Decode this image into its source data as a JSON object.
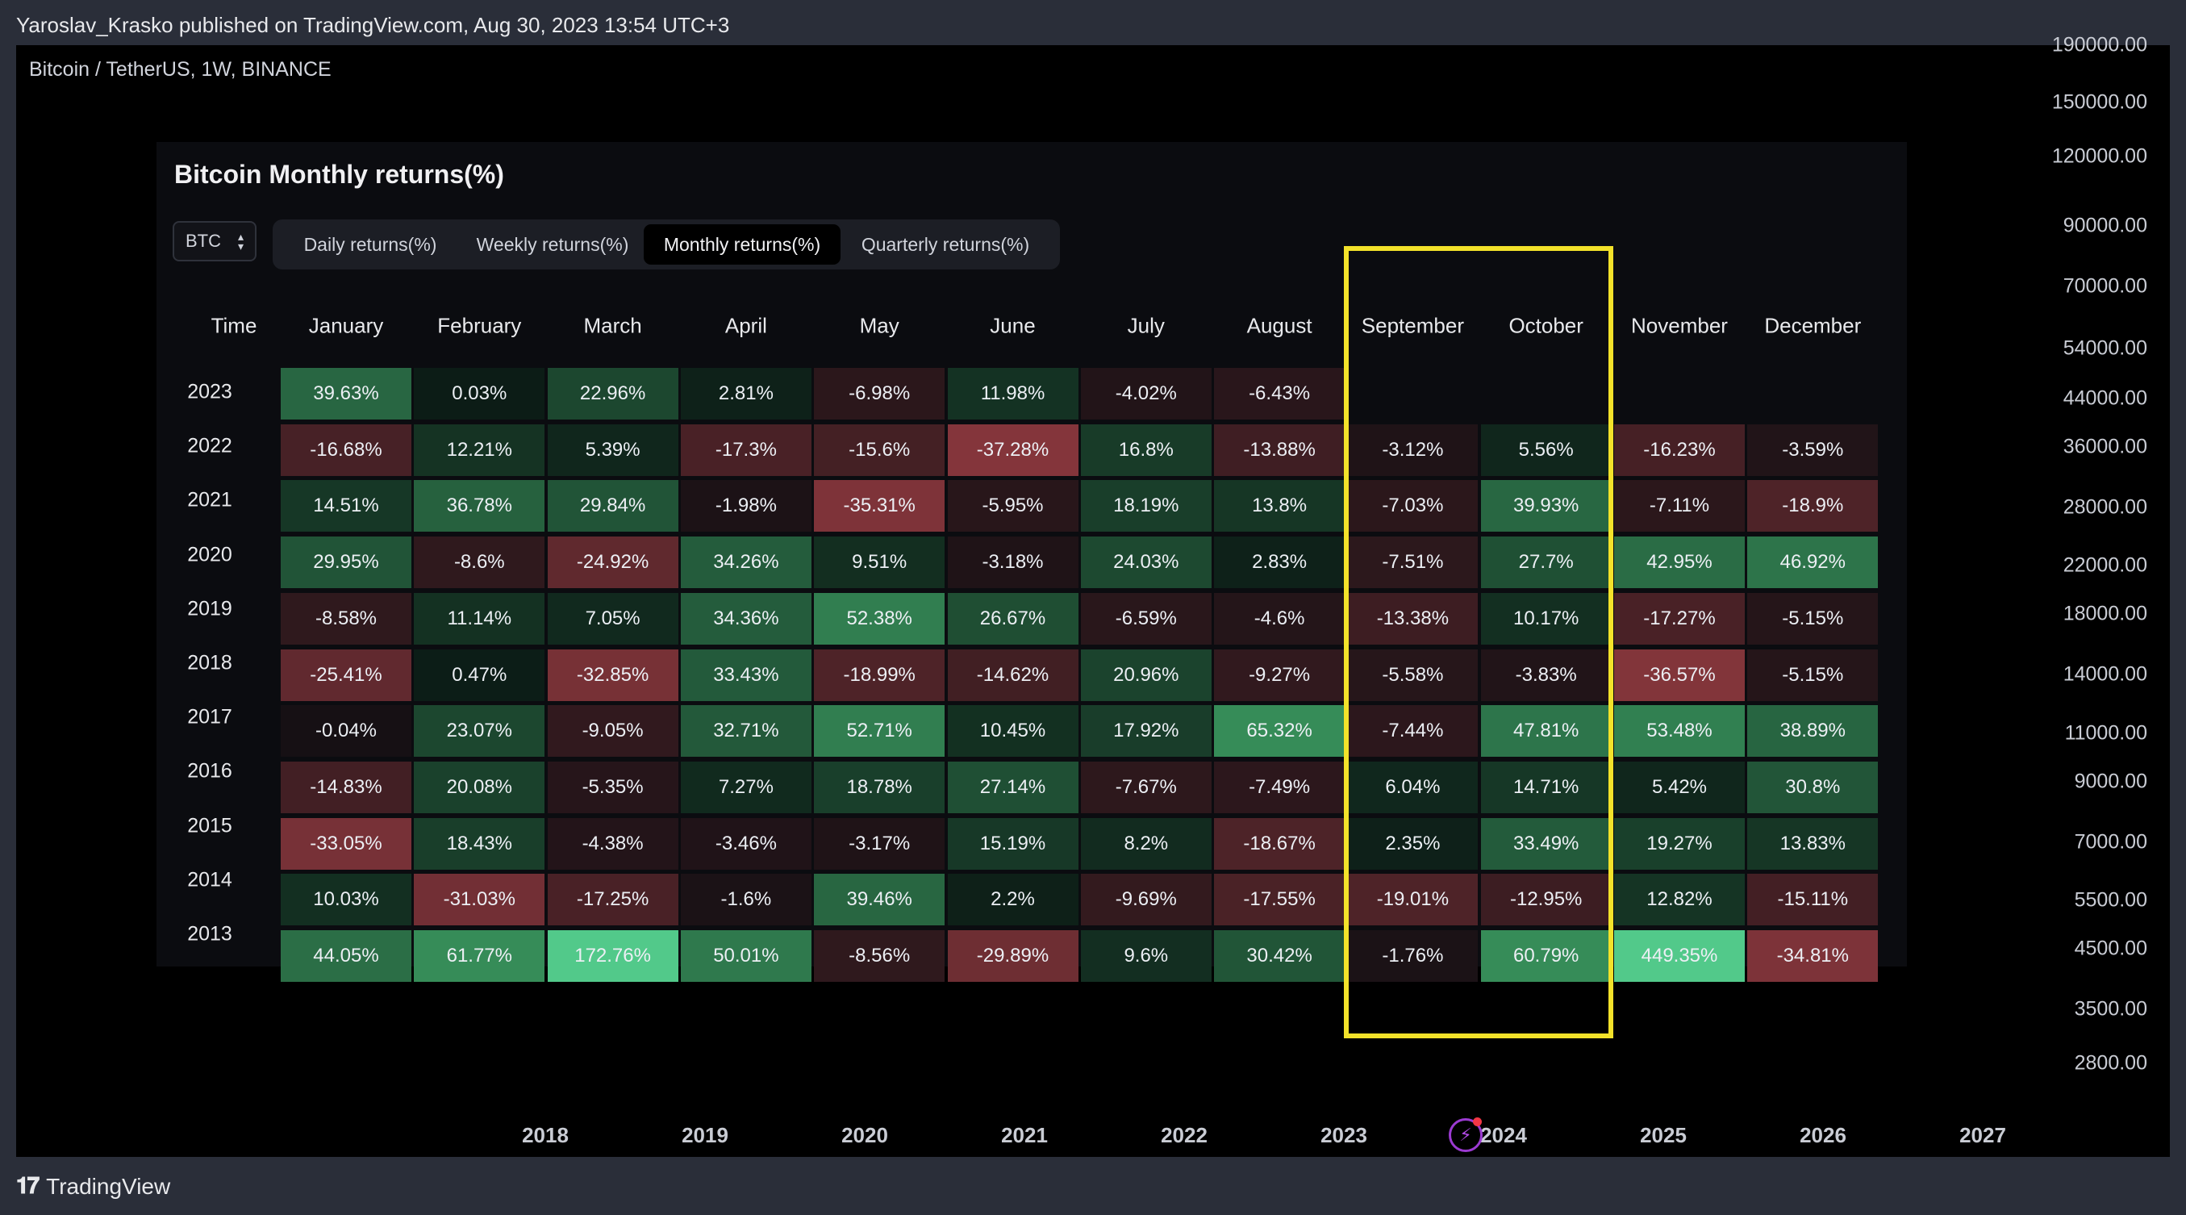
{
  "header": {
    "publisher": "Yaroslav_Krasko published on TradingView.com, Aug 30, 2023 13:54 UTC+3"
  },
  "chart": {
    "symbol": "Bitcoin / TetherUS, 1W, BINANCE",
    "price_ticks": [
      "190000.00",
      "150000.00",
      "120000.00",
      "90000.00",
      "70000.00",
      "54000.00",
      "44000.00",
      "36000.00",
      "28000.00",
      "22000.00",
      "18000.00",
      "14000.00",
      "11000.00",
      "9000.00",
      "7000.00",
      "5500.00",
      "4500.00",
      "3500.00",
      "2800.00"
    ],
    "time_ticks": [
      "2018",
      "2019",
      "2020",
      "2021",
      "2022",
      "2023",
      "2024",
      "2025",
      "2026",
      "2027"
    ]
  },
  "footer": {
    "brand": "TradingView"
  },
  "panel": {
    "title": "Bitcoin Monthly returns(%)",
    "asset": "BTC",
    "tabs": [
      {
        "label": "Daily returns(%)",
        "active": false
      },
      {
        "label": "Weekly returns(%)",
        "active": false
      },
      {
        "label": "Monthly returns(%)",
        "active": true
      },
      {
        "label": "Quarterly returns(%)",
        "active": false
      }
    ]
  },
  "chart_data": {
    "type": "heatmap",
    "title": "Bitcoin Monthly returns(%)",
    "row_header": "Time",
    "columns": [
      "January",
      "February",
      "March",
      "April",
      "May",
      "June",
      "July",
      "August",
      "September",
      "October",
      "November",
      "December"
    ],
    "rows": [
      {
        "year": "2023",
        "values": [
          39.63,
          0.03,
          22.96,
          2.81,
          -6.98,
          11.98,
          -4.02,
          -6.43,
          null,
          null,
          null,
          null
        ],
        "labels": [
          "39.63%",
          "0.03%",
          "22.96%",
          "2.81%",
          "-6.98%",
          "11.98%",
          "-4.02%",
          "-6.43%",
          "",
          "",
          "",
          ""
        ]
      },
      {
        "year": "2022",
        "values": [
          -16.68,
          12.21,
          5.39,
          -17.3,
          -15.6,
          -37.28,
          16.8,
          -13.88,
          -3.12,
          5.56,
          -16.23,
          -3.59
        ],
        "labels": [
          "-16.68%",
          "12.21%",
          "5.39%",
          "-17.3%",
          "-15.6%",
          "-37.28%",
          "16.8%",
          "-13.88%",
          "-3.12%",
          "5.56%",
          "-16.23%",
          "-3.59%"
        ]
      },
      {
        "year": "2021",
        "values": [
          14.51,
          36.78,
          29.84,
          -1.98,
          -35.31,
          -5.95,
          18.19,
          13.8,
          -7.03,
          39.93,
          -7.11,
          -18.9
        ],
        "labels": [
          "14.51%",
          "36.78%",
          "29.84%",
          "-1.98%",
          "-35.31%",
          "-5.95%",
          "18.19%",
          "13.8%",
          "-7.03%",
          "39.93%",
          "-7.11%",
          "-18.9%"
        ]
      },
      {
        "year": "2020",
        "values": [
          29.95,
          -8.6,
          -24.92,
          34.26,
          9.51,
          -3.18,
          24.03,
          2.83,
          -7.51,
          27.7,
          42.95,
          46.92
        ],
        "labels": [
          "29.95%",
          "-8.6%",
          "-24.92%",
          "34.26%",
          "9.51%",
          "-3.18%",
          "24.03%",
          "2.83%",
          "-7.51%",
          "27.7%",
          "42.95%",
          "46.92%"
        ]
      },
      {
        "year": "2019",
        "values": [
          -8.58,
          11.14,
          7.05,
          34.36,
          52.38,
          26.67,
          -6.59,
          -4.6,
          -13.38,
          10.17,
          -17.27,
          -5.15
        ],
        "labels": [
          "-8.58%",
          "11.14%",
          "7.05%",
          "34.36%",
          "52.38%",
          "26.67%",
          "-6.59%",
          "-4.6%",
          "-13.38%",
          "10.17%",
          "-17.27%",
          "-5.15%"
        ]
      },
      {
        "year": "2018",
        "values": [
          -25.41,
          0.47,
          -32.85,
          33.43,
          -18.99,
          -14.62,
          20.96,
          -9.27,
          -5.58,
          -3.83,
          -36.57,
          -5.15
        ],
        "labels": [
          "-25.41%",
          "0.47%",
          "-32.85%",
          "33.43%",
          "-18.99%",
          "-14.62%",
          "20.96%",
          "-9.27%",
          "-5.58%",
          "-3.83%",
          "-36.57%",
          "-5.15%"
        ]
      },
      {
        "year": "2017",
        "values": [
          -0.04,
          23.07,
          -9.05,
          32.71,
          52.71,
          10.45,
          17.92,
          65.32,
          -7.44,
          47.81,
          53.48,
          38.89
        ],
        "labels": [
          "-0.04%",
          "23.07%",
          "-9.05%",
          "32.71%",
          "52.71%",
          "10.45%",
          "17.92%",
          "65.32%",
          "-7.44%",
          "47.81%",
          "53.48%",
          "38.89%"
        ]
      },
      {
        "year": "2016",
        "values": [
          -14.83,
          20.08,
          -5.35,
          7.27,
          18.78,
          27.14,
          -7.67,
          -7.49,
          6.04,
          14.71,
          5.42,
          30.8
        ],
        "labels": [
          "-14.83%",
          "20.08%",
          "-5.35%",
          "7.27%",
          "18.78%",
          "27.14%",
          "-7.67%",
          "-7.49%",
          "6.04%",
          "14.71%",
          "5.42%",
          "30.8%"
        ]
      },
      {
        "year": "2015",
        "values": [
          -33.05,
          18.43,
          -4.38,
          -3.46,
          -3.17,
          15.19,
          8.2,
          -18.67,
          2.35,
          33.49,
          19.27,
          13.83
        ],
        "labels": [
          "-33.05%",
          "18.43%",
          "-4.38%",
          "-3.46%",
          "-3.17%",
          "15.19%",
          "8.2%",
          "-18.67%",
          "2.35%",
          "33.49%",
          "19.27%",
          "13.83%"
        ]
      },
      {
        "year": "2014",
        "values": [
          10.03,
          -31.03,
          -17.25,
          -1.6,
          39.46,
          2.2,
          -9.69,
          -17.55,
          -19.01,
          -12.95,
          12.82,
          -15.11
        ],
        "labels": [
          "10.03%",
          "-31.03%",
          "-17.25%",
          "-1.6%",
          "39.46%",
          "2.2%",
          "-9.69%",
          "-17.55%",
          "-19.01%",
          "-12.95%",
          "12.82%",
          "-15.11%"
        ]
      },
      {
        "year": "2013",
        "values": [
          44.05,
          61.77,
          172.76,
          50.01,
          -8.56,
          -29.89,
          9.6,
          30.42,
          -1.76,
          60.79,
          449.35,
          -34.81
        ],
        "labels": [
          "44.05%",
          "61.77%",
          "172.76%",
          "50.01%",
          "-8.56%",
          "-29.89%",
          "9.6%",
          "30.42%",
          "-1.76%",
          "60.79%",
          "449.35%",
          "-34.81%"
        ]
      }
    ],
    "highlighted_columns": [
      "September",
      "October"
    ],
    "colors": {
      "positive": "#3b9a68",
      "negative": "#b0444e",
      "highlight": "#f3e22a"
    }
  }
}
